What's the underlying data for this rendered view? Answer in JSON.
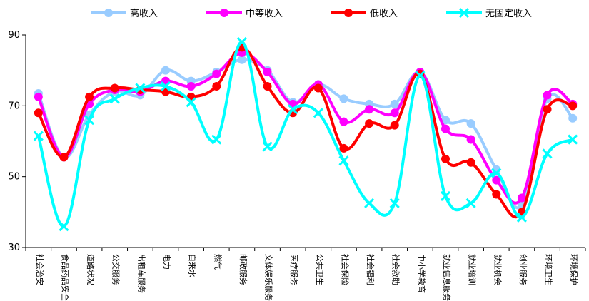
{
  "chart_data": {
    "type": "line",
    "title": "",
    "xlabel": "",
    "ylabel": "",
    "ylim": [
      30,
      90
    ],
    "yticks": [
      30,
      50,
      70,
      90
    ],
    "grid": false,
    "legend_position": "top",
    "categories": [
      "社会治安",
      "食品药品安全",
      "道路状况",
      "公交服务",
      "出租车服务",
      "电力",
      "自来水",
      "燃气",
      "邮政服务",
      "文体娱乐服务",
      "医疗服务",
      "公共卫生",
      "社会保险",
      "社会福利",
      "社会救助",
      "中小学教育",
      "就业信息服务",
      "就业培训",
      "就业机会",
      "创业服务",
      "环境卫生",
      "环境保护"
    ],
    "series": [
      {
        "name": "高收入",
        "color": "#99ccff",
        "marker": "circle",
        "values": [
          73.5,
          55.5,
          67.5,
          74.0,
          73.0,
          80.0,
          77.0,
          79.5,
          83.0,
          80.0,
          71.0,
          76.0,
          72.0,
          70.5,
          70.5,
          79.5,
          66.0,
          65.0,
          52.0,
          42.0,
          72.0,
          66.5
        ]
      },
      {
        "name": "中等收入",
        "color": "#ff00ff",
        "marker": "circle",
        "values": [
          72.5,
          55.5,
          70.5,
          74.5,
          74.0,
          77.0,
          75.5,
          79.0,
          85.0,
          79.5,
          70.5,
          76.0,
          65.5,
          69.0,
          68.0,
          79.5,
          63.5,
          60.5,
          49.0,
          44.0,
          73.0,
          70.5
        ]
      },
      {
        "name": "低收入",
        "color": "#ff0000",
        "marker": "circle",
        "values": [
          68.0,
          55.5,
          72.5,
          75.0,
          74.5,
          74.0,
          72.5,
          75.5,
          86.5,
          75.5,
          68.0,
          75.0,
          58.0,
          65.0,
          64.5,
          79.0,
          55.0,
          54.0,
          45.0,
          40.0,
          69.0,
          70.0
        ]
      },
      {
        "name": "无固定收入",
        "color": "#00ffff",
        "marker": "x",
        "values": [
          61.5,
          36.0,
          66.0,
          72.0,
          75.0,
          75.5,
          71.0,
          60.5,
          88.0,
          58.5,
          69.0,
          68.0,
          54.5,
          42.5,
          42.5,
          78.5,
          44.5,
          42.5,
          51.0,
          38.5,
          56.5,
          60.5
        ]
      }
    ]
  }
}
